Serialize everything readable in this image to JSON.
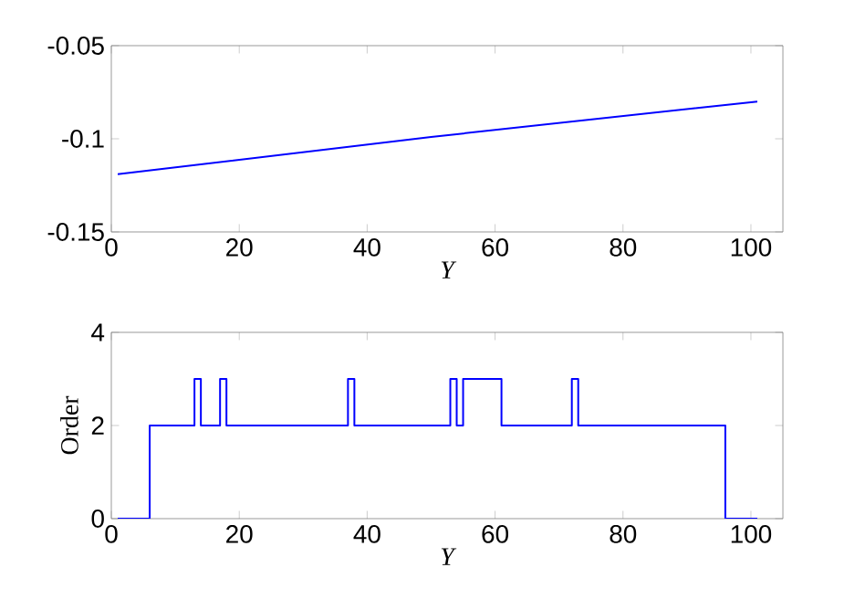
{
  "chart_data": [
    {
      "type": "line",
      "xlabel": "Y",
      "x": [
        1,
        50,
        101
      ],
      "values": [
        -0.119,
        -0.099,
        -0.08
      ],
      "color": "#0000ff",
      "xlim": [
        0,
        105
      ],
      "ylim": [
        -0.15,
        -0.05
      ],
      "xticks": [
        0,
        20,
        40,
        60,
        80,
        100
      ],
      "yticks": [
        -0.15,
        {
          "value": -0.1,
          "label": "-0.1"
        },
        -0.05
      ]
    },
    {
      "type": "step",
      "xlabel": "Y",
      "ylabel": "Order",
      "x": [
        1,
        6,
        13,
        14,
        17,
        18,
        37,
        38,
        53,
        54,
        55,
        61,
        72,
        73,
        96,
        101
      ],
      "values": [
        0,
        2,
        3,
        2,
        3,
        2,
        3,
        2,
        3,
        2,
        3,
        2,
        3,
        2,
        0,
        0
      ],
      "color": "#0000ff",
      "xlim": [
        0,
        105
      ],
      "ylim": [
        0,
        4
      ],
      "xticks": [
        0,
        20,
        40,
        60,
        80,
        100
      ],
      "yticks": [
        0,
        2,
        4
      ]
    }
  ]
}
